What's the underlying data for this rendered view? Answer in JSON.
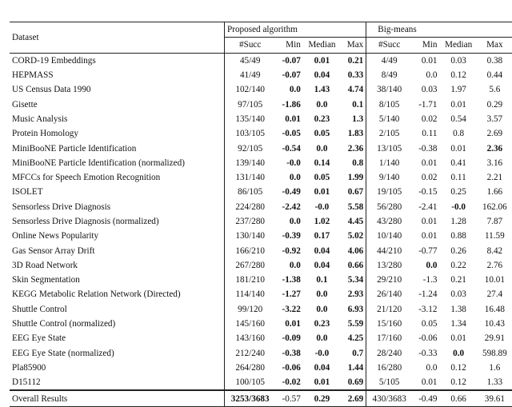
{
  "header": {
    "dataset": "Dataset",
    "group1": "Proposed algorithm",
    "group2": "Big-means",
    "cols": [
      "#Succ",
      "Min",
      "Median",
      "Max",
      "#Succ",
      "Min",
      "Median",
      "Max"
    ]
  },
  "rows": [
    {
      "name": "CORD-19 Embeddings",
      "v": [
        "45/49",
        "-0.07",
        "0.01",
        "0.21",
        "4/49",
        "0.01",
        "0.03",
        "0.38"
      ],
      "bold": [
        1,
        2,
        3
      ]
    },
    {
      "name": "HEPMASS",
      "v": [
        "41/49",
        "-0.07",
        "0.04",
        "0.33",
        "8/49",
        "0.0",
        "0.12",
        "0.44"
      ],
      "bold": [
        1,
        2,
        3
      ]
    },
    {
      "name": "US Census Data 1990",
      "v": [
        "102/140",
        "0.0",
        "1.43",
        "4.74",
        "38/140",
        "0.03",
        "1.97",
        "5.6"
      ],
      "bold": [
        1,
        2,
        3
      ]
    },
    {
      "name": "Gisette",
      "v": [
        "97/105",
        "-1.86",
        "0.0",
        "0.1",
        "8/105",
        "-1.71",
        "0.01",
        "0.29"
      ],
      "bold": [
        1,
        2,
        3
      ]
    },
    {
      "name": "Music Analysis",
      "v": [
        "135/140",
        "0.01",
        "0.23",
        "1.3",
        "5/140",
        "0.02",
        "0.54",
        "3.57"
      ],
      "bold": [
        1,
        2,
        3
      ]
    },
    {
      "name": "Protein Homology",
      "v": [
        "103/105",
        "-0.05",
        "0.05",
        "1.83",
        "2/105",
        "0.11",
        "0.8",
        "2.69"
      ],
      "bold": [
        1,
        2,
        3
      ]
    },
    {
      "name": "MiniBooNE Particle Identification",
      "v": [
        "92/105",
        "-0.54",
        "0.0",
        "2.36",
        "13/105",
        "-0.38",
        "0.01",
        "2.36"
      ],
      "bold": [
        1,
        2,
        3,
        7
      ]
    },
    {
      "name": "MiniBooNE Particle Identification (normalized)",
      "v": [
        "139/140",
        "-0.0",
        "0.14",
        "0.8",
        "1/140",
        "0.01",
        "0.41",
        "3.16"
      ],
      "bold": [
        1,
        2,
        3
      ]
    },
    {
      "name": "MFCCs for Speech Emotion Recognition",
      "v": [
        "131/140",
        "0.0",
        "0.05",
        "1.99",
        "9/140",
        "0.02",
        "0.11",
        "2.21"
      ],
      "bold": [
        1,
        2,
        3
      ]
    },
    {
      "name": "ISOLET",
      "v": [
        "86/105",
        "-0.49",
        "0.01",
        "0.67",
        "19/105",
        "-0.15",
        "0.25",
        "1.66"
      ],
      "bold": [
        1,
        2,
        3
      ]
    },
    {
      "name": "Sensorless Drive Diagnosis",
      "v": [
        "224/280",
        "-2.42",
        "-0.0",
        "5.58",
        "56/280",
        "-2.41",
        "-0.0",
        "162.06"
      ],
      "bold": [
        1,
        2,
        3,
        6
      ]
    },
    {
      "name": "Sensorless Drive Diagnosis (normalized)",
      "v": [
        "237/280",
        "0.0",
        "1.02",
        "4.45",
        "43/280",
        "0.01",
        "1.28",
        "7.87"
      ],
      "bold": [
        1,
        2,
        3
      ]
    },
    {
      "name": "Online News Popularity",
      "v": [
        "130/140",
        "-0.39",
        "0.17",
        "5.02",
        "10/140",
        "0.01",
        "0.88",
        "11.59"
      ],
      "bold": [
        1,
        2,
        3
      ]
    },
    {
      "name": "Gas Sensor Array Drift",
      "v": [
        "166/210",
        "-0.92",
        "0.04",
        "4.06",
        "44/210",
        "-0.77",
        "0.26",
        "8.42"
      ],
      "bold": [
        1,
        2,
        3
      ]
    },
    {
      "name": "3D Road Network",
      "v": [
        "267/280",
        "0.0",
        "0.04",
        "0.66",
        "13/280",
        "0.0",
        "0.22",
        "2.76"
      ],
      "bold": [
        1,
        2,
        3,
        5
      ]
    },
    {
      "name": "Skin Segmentation",
      "v": [
        "181/210",
        "-1.38",
        "0.1",
        "5.34",
        "29/210",
        "-1.3",
        "0.21",
        "10.01"
      ],
      "bold": [
        1,
        2,
        3
      ]
    },
    {
      "name": "KEGG Metabolic Relation Network (Directed)",
      "v": [
        "114/140",
        "-1.27",
        "0.0",
        "2.93",
        "26/140",
        "-1.24",
        "0.03",
        "27.4"
      ],
      "bold": [
        1,
        2,
        3
      ]
    },
    {
      "name": "Shuttle Control",
      "v": [
        "99/120",
        "-3.22",
        "0.0",
        "6.93",
        "21/120",
        "-3.12",
        "1.38",
        "16.48"
      ],
      "bold": [
        1,
        2,
        3
      ]
    },
    {
      "name": "Shuttle Control (normalized)",
      "v": [
        "145/160",
        "0.01",
        "0.23",
        "5.59",
        "15/160",
        "0.05",
        "1.34",
        "10.43"
      ],
      "bold": [
        1,
        2,
        3
      ]
    },
    {
      "name": "EEG Eye State",
      "v": [
        "143/160",
        "-0.09",
        "0.0",
        "4.25",
        "17/160",
        "-0.06",
        "0.01",
        "29.91"
      ],
      "bold": [
        1,
        2,
        3
      ]
    },
    {
      "name": "EEG Eye State (normalized)",
      "v": [
        "212/240",
        "-0.38",
        "-0.0",
        "0.7",
        "28/240",
        "-0.33",
        "0.0",
        "598.89"
      ],
      "bold": [
        1,
        2,
        3,
        6
      ]
    },
    {
      "name": "Pla85900",
      "v": [
        "264/280",
        "-0.06",
        "0.04",
        "1.44",
        "16/280",
        "0.0",
        "0.12",
        "1.6"
      ],
      "bold": [
        1,
        2,
        3
      ]
    },
    {
      "name": "D15112",
      "v": [
        "100/105",
        "-0.02",
        "0.01",
        "0.69",
        "5/105",
        "0.01",
        "0.12",
        "1.33"
      ],
      "bold": [
        1,
        2,
        3
      ]
    }
  ],
  "overall": {
    "name": "Overall Results",
    "v": [
      "3253/3683",
      "-0.57",
      "0.29",
      "2.69",
      "430/3683",
      "-0.49",
      "0.66",
      "39.61"
    ],
    "bold": [
      0,
      2,
      3
    ]
  }
}
